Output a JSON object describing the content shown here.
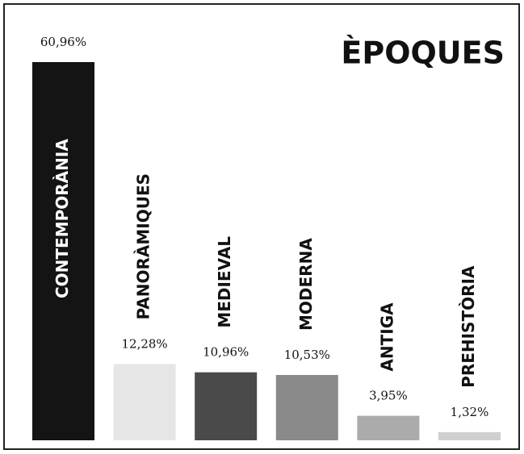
{
  "chart_data": {
    "type": "bar",
    "title": "ÈPOQUES",
    "categories": [
      "Contemporània",
      "Panoràmiques",
      "Medieval",
      "Moderna",
      "Antiga",
      "Prehistòria"
    ],
    "values": [
      60.96,
      12.28,
      10.96,
      10.53,
      3.95,
      1.32
    ],
    "value_labels": [
      "60,96%",
      "12,28%",
      "10,96%",
      "10,53%",
      "3,95%",
      "1,32%"
    ],
    "colors": [
      "#141414",
      "#e6e6e6",
      "#4a4a4a",
      "#8a8a8a",
      "#ababab",
      "#cfcfcf"
    ]
  }
}
